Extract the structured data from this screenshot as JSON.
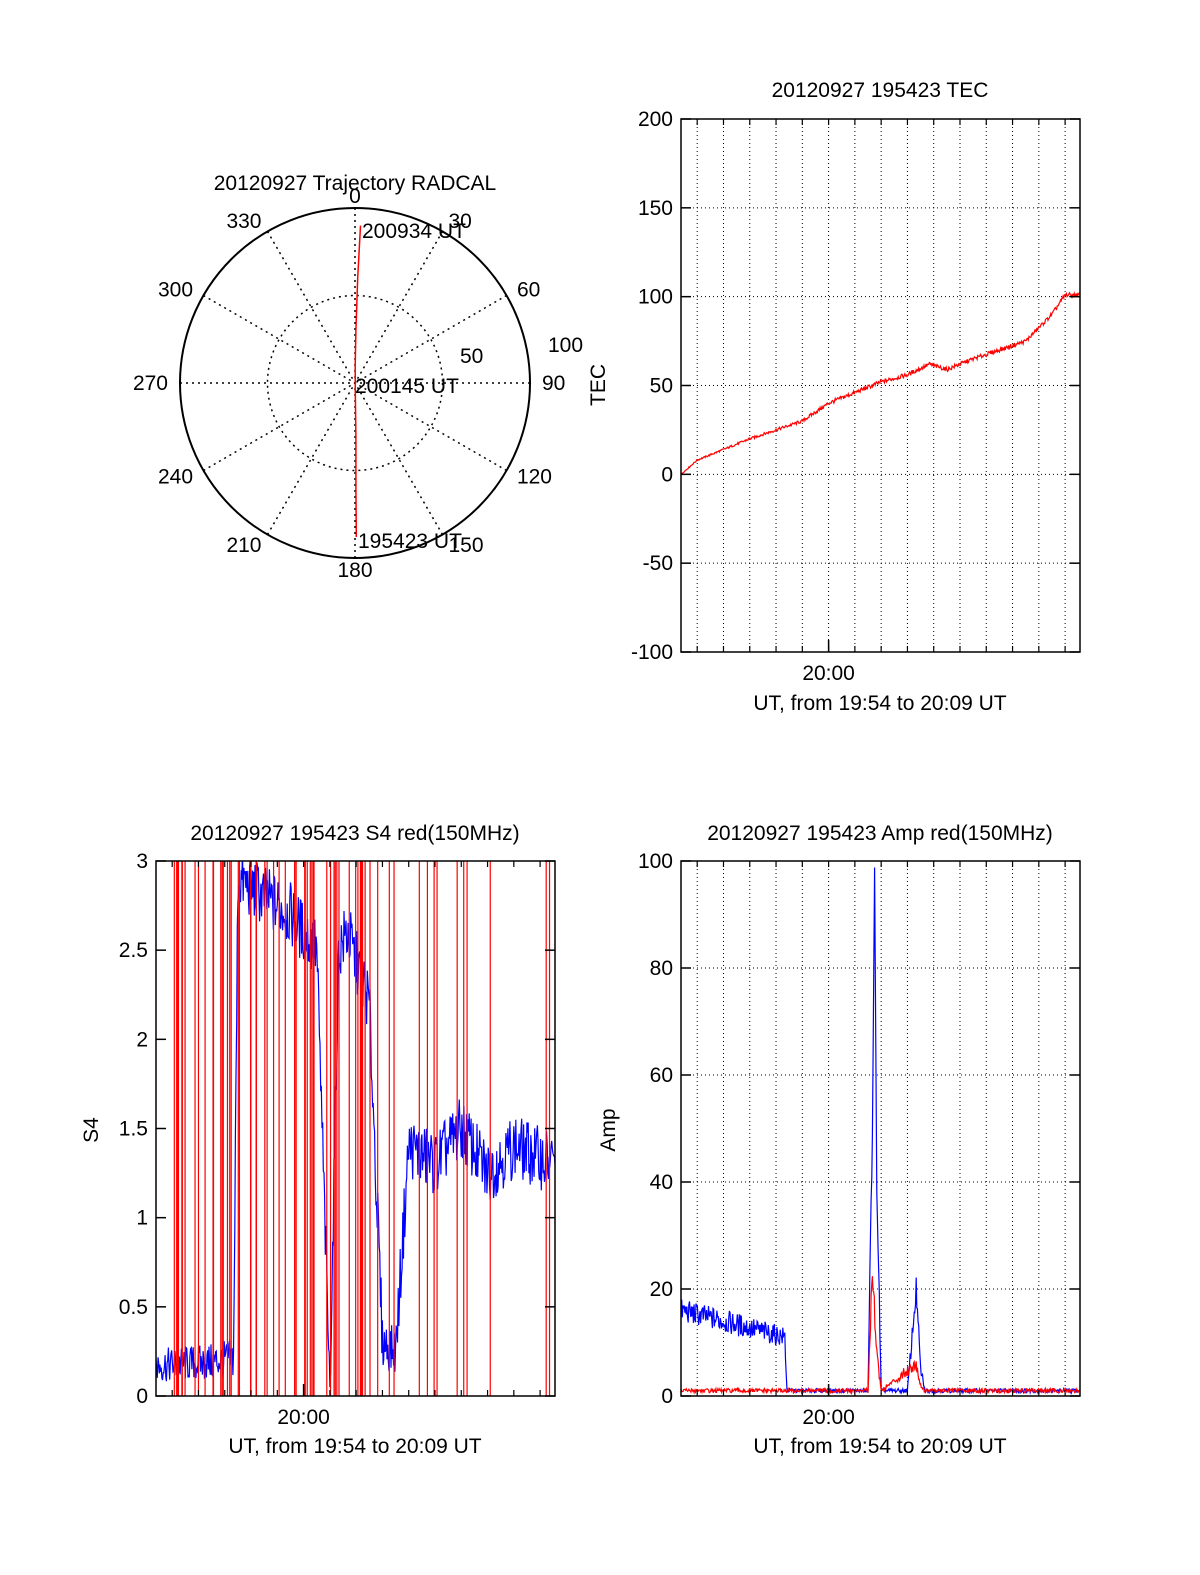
{
  "colors": {
    "red": "#ff0000",
    "blue": "#0000ff",
    "axis": "#000000",
    "grid": "#000000"
  },
  "chart_data": [
    {
      "id": "trajectory",
      "type": "polar",
      "title": "20120927 Trajectory RADCAL",
      "angle_labels": [
        "0",
        "30",
        "60",
        "90",
        "120",
        "150",
        "180",
        "210",
        "240",
        "270",
        "300",
        "330"
      ],
      "radius_labels": [
        "50",
        "100"
      ],
      "rlim": [
        0,
        100
      ],
      "annotations": [
        "200934 UT",
        "200145 UT",
        "195423 UT"
      ],
      "track": [
        {
          "az": 2,
          "r": 90
        },
        {
          "az": 1.5,
          "r": 60
        },
        {
          "az": 1,
          "r": 30
        },
        {
          "az": 0.8,
          "r": 10
        },
        {
          "az": 178,
          "r": 5
        },
        {
          "az": 179,
          "r": 30
        },
        {
          "az": 179.5,
          "r": 60
        },
        {
          "az": 179.5,
          "r": 88
        }
      ],
      "grid": true
    },
    {
      "id": "tec",
      "type": "line",
      "title": "20120927 195423 TEC",
      "xlabel": "UT, from 19:54 to 20:09 UT",
      "ylabel": "TEC",
      "xlim": [
        "19:54:23",
        "20:09:34"
      ],
      "ylim": [
        -100,
        200
      ],
      "yticks": [
        "-100",
        "-50",
        "0",
        "50",
        "100",
        "150",
        "200"
      ],
      "xticks": [
        {
          "t": "20:00:00",
          "label": "20:00"
        }
      ],
      "grid": true,
      "series": [
        {
          "color": "red",
          "x": [
            "19:54:23",
            "19:55:00",
            "19:56:00",
            "19:57:00",
            "19:58:00",
            "19:59:00",
            "20:00:00",
            "20:01:00",
            "20:02:00",
            "20:03:00",
            "20:03:50",
            "20:04:30",
            "20:05:30",
            "20:06:30",
            "20:07:30",
            "20:08:30",
            "20:09:00",
            "20:09:34"
          ],
          "y": [
            0,
            8,
            14,
            20,
            25,
            30,
            40,
            46,
            52,
            56,
            62,
            59,
            65,
            70,
            75,
            90,
            101,
            101
          ]
        }
      ]
    },
    {
      "id": "s4",
      "type": "line",
      "title": "20120927 195423 S4 red(150MHz)",
      "xlabel": "UT, from 19:54 to 20:09 UT",
      "ylabel": "S4",
      "xlim": [
        "19:54:23",
        "20:09:34"
      ],
      "ylim": [
        0,
        3
      ],
      "yticks": [
        "0",
        "0.5",
        "1",
        "1.5",
        "2",
        "2.5",
        "3"
      ],
      "xticks": [
        {
          "t": "20:00:00",
          "label": "20:00"
        }
      ],
      "grid": false,
      "series": [
        {
          "color": "blue",
          "x": [
            "19:54:23",
            "19:55:30",
            "19:56:30",
            "19:57:20",
            "19:57:30",
            "19:58:30",
            "19:59:30",
            "20:00:30",
            "20:01:00",
            "20:01:20",
            "20:01:40",
            "20:02:30",
            "20:03:00",
            "20:03:30",
            "20:04:00",
            "20:05:00",
            "20:06:00",
            "20:07:00",
            "20:08:00",
            "20:09:34"
          ],
          "y": [
            0.17,
            0.18,
            0.19,
            0.21,
            2.9,
            2.8,
            2.7,
            2.5,
            0.05,
            2.5,
            2.6,
            2.2,
            0.3,
            0.25,
            1.4,
            1.3,
            1.5,
            1.25,
            1.4,
            1.3
          ]
        }
      ]
    },
    {
      "id": "amp",
      "type": "line",
      "title": "20120927 195423 Amp red(150MHz)",
      "xlabel": "UT, from 19:54 to 20:09 UT",
      "ylabel": "Amp",
      "xlim": [
        "19:54:23",
        "20:09:34"
      ],
      "ylim": [
        0,
        100
      ],
      "yticks": [
        "0",
        "20",
        "40",
        "60",
        "80",
        "100"
      ],
      "xticks": [
        {
          "t": "20:00:00",
          "label": "20:00"
        }
      ],
      "grid": true,
      "series": [
        {
          "color": "blue",
          "x": [
            "19:54:23",
            "19:56:00",
            "19:58:20",
            "19:58:25",
            "20:00:00",
            "20:01:30",
            "20:01:40",
            "20:01:45",
            "20:01:50",
            "20:02:00",
            "20:03:00",
            "20:03:20",
            "20:03:30",
            "20:03:40",
            "20:05:00",
            "20:09:34"
          ],
          "y": [
            16,
            14,
            11,
            1,
            1,
            1,
            50,
            97,
            40,
            1,
            1,
            20,
            5,
            1,
            1,
            1
          ]
        },
        {
          "color": "red",
          "x": [
            "19:54:23",
            "19:58:20",
            "20:01:30",
            "20:01:40",
            "20:01:50",
            "20:02:00",
            "20:03:20",
            "20:03:30",
            "20:03:40",
            "20:09:34"
          ],
          "y": [
            1,
            1,
            1,
            24,
            8,
            1,
            6,
            2,
            1,
            1
          ]
        }
      ]
    }
  ]
}
